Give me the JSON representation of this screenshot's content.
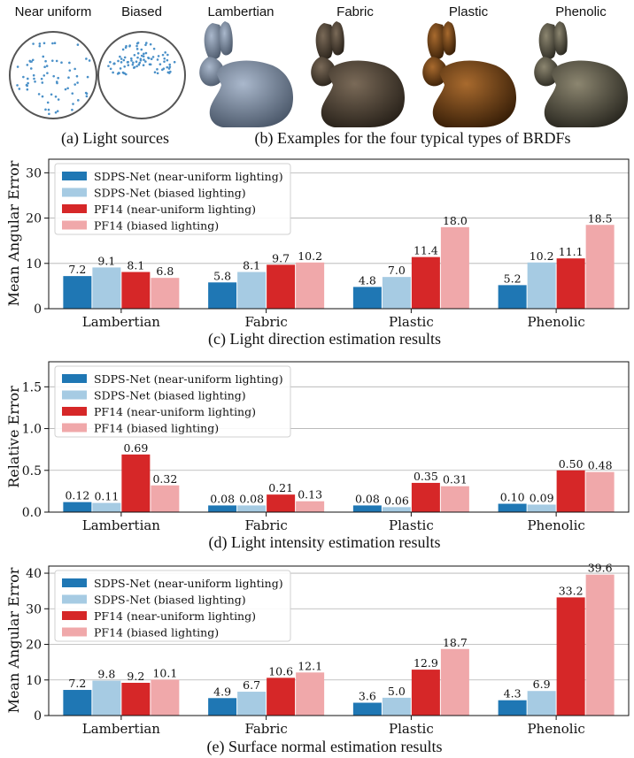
{
  "figure": {
    "light_source_labels": [
      "Near uniform",
      "Biased"
    ],
    "brdf_labels": [
      "Lambertian",
      "Fabric",
      "Plastic",
      "Phenolic"
    ],
    "caption_a": "(a) Light sources",
    "caption_b": "(b) Examples for the four typical types of BRDFs",
    "colors": {
      "sdps_uniform": "#1f77b4",
      "sdps_biased": "#a6cbe3",
      "pf14_uniform": "#d62728",
      "pf14_biased": "#f0a8aa",
      "light_points": "#4a90c8",
      "bunny_lambertian": "#7a8aa0",
      "bunny_fabric": "#4a3f33",
      "bunny_plastic": "#6b3f14",
      "bunny_phenolic": "#5a5546"
    }
  },
  "chart_data": [
    {
      "type": "bar",
      "caption": "(c) Light direction estimation results",
      "ylabel": "Mean Angular Error",
      "categories": [
        "Lambertian",
        "Fabric",
        "Plastic",
        "Phenolic"
      ],
      "ylim": [
        0,
        33
      ],
      "yticks": [
        0,
        10,
        20,
        30
      ],
      "grid": true,
      "legend_position": "top-left",
      "series": [
        {
          "name": "SDPS-Net (near-uniform lighting)",
          "values": [
            7.2,
            5.8,
            4.8,
            5.2
          ],
          "labels": [
            "7.2",
            "5.8",
            "4.8",
            "5.2"
          ]
        },
        {
          "name": "SDPS-Net (biased lighting)",
          "values": [
            9.1,
            8.1,
            7.0,
            10.2
          ],
          "labels": [
            "9.1",
            "8.1",
            "7.0",
            "10.2"
          ]
        },
        {
          "name": "PF14 (near-uniform lighting)",
          "values": [
            8.1,
            9.7,
            11.4,
            11.1
          ],
          "labels": [
            "8.1",
            "9.7",
            "11.4",
            "11.1"
          ]
        },
        {
          "name": "PF14 (biased lighting)",
          "values": [
            6.8,
            10.2,
            18.0,
            18.5
          ],
          "labels": [
            "6.8",
            "10.2",
            "18.0",
            "18.5"
          ]
        }
      ]
    },
    {
      "type": "bar",
      "caption": "(d) Light intensity estimation results",
      "ylabel": "Relative Error",
      "categories": [
        "Lambertian",
        "Fabric",
        "Plastic",
        "Phenolic"
      ],
      "ylim": [
        0,
        1.8
      ],
      "yticks": [
        0.0,
        0.5,
        1.0,
        1.5
      ],
      "ytick_labels": [
        "0.0",
        "0.5",
        "1.0",
        "1.5"
      ],
      "grid": true,
      "legend_position": "top-left",
      "series": [
        {
          "name": "SDPS-Net (near-uniform lighting)",
          "values": [
            0.12,
            0.08,
            0.08,
            0.1
          ],
          "labels": [
            "0.12",
            "0.08",
            "0.08",
            "0.10"
          ]
        },
        {
          "name": "SDPS-Net (biased lighting)",
          "values": [
            0.11,
            0.08,
            0.06,
            0.09
          ],
          "labels": [
            "0.11",
            "0.08",
            "0.06",
            "0.09"
          ]
        },
        {
          "name": "PF14 (near-uniform lighting)",
          "values": [
            0.69,
            0.21,
            0.35,
            0.5
          ],
          "labels": [
            "0.69",
            "0.21",
            "0.35",
            "0.50"
          ]
        },
        {
          "name": "PF14 (biased lighting)",
          "values": [
            0.32,
            0.13,
            0.31,
            0.48
          ],
          "labels": [
            "0.32",
            "0.13",
            "0.31",
            "0.48"
          ]
        }
      ]
    },
    {
      "type": "bar",
      "caption": "(e) Surface normal estimation results",
      "ylabel": "Mean Angular Error",
      "categories": [
        "Lambertian",
        "Fabric",
        "Plastic",
        "Phenolic"
      ],
      "ylim": [
        0,
        42
      ],
      "yticks": [
        0,
        10,
        20,
        30,
        40
      ],
      "grid": true,
      "legend_position": "top-left",
      "series": [
        {
          "name": "SDPS-Net (near-uniform lighting)",
          "values": [
            7.2,
            4.9,
            3.6,
            4.3
          ],
          "labels": [
            "7.2",
            "4.9",
            "3.6",
            "4.3"
          ]
        },
        {
          "name": "SDPS-Net (biased lighting)",
          "values": [
            9.8,
            6.7,
            5.0,
            6.9
          ],
          "labels": [
            "9.8",
            "6.7",
            "5.0",
            "6.9"
          ]
        },
        {
          "name": "PF14 (near-uniform lighting)",
          "values": [
            9.2,
            10.6,
            12.9,
            33.2
          ],
          "labels": [
            "9.2",
            "10.6",
            "12.9",
            "33.2"
          ]
        },
        {
          "name": "PF14 (biased lighting)",
          "values": [
            10.1,
            12.1,
            18.7,
            39.6
          ],
          "labels": [
            "10.1",
            "12.1",
            "18.7",
            "39.6"
          ]
        }
      ]
    }
  ]
}
